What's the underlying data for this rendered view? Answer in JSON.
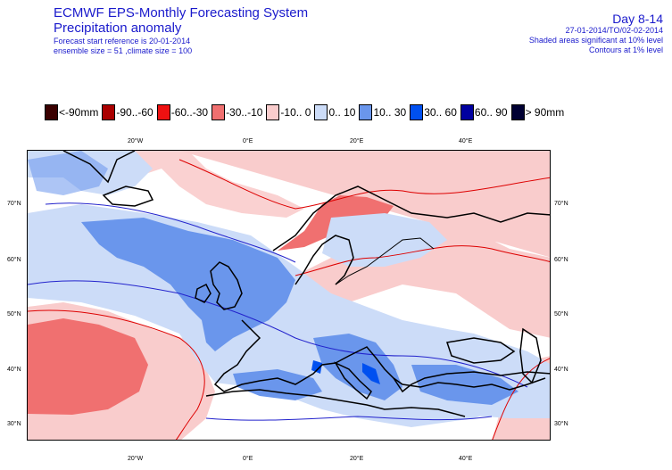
{
  "header": {
    "title_line1": "ECMWF EPS-Monthly Forecasting System",
    "title_line2": "Precipitation anomaly",
    "start_reference": "Forecast start reference is 20-01-2014",
    "ensemble_info": "ensemble size = 51 ,climate size = 100",
    "period_label": "Day 8-14",
    "date_range": "27-01-2014/TO/02-02-2014",
    "shaded_note": "Shaded areas significant at 10% level",
    "contour_note": "Contours at 1% level"
  },
  "legend": [
    {
      "label": "<-90mm",
      "color": "#3a0000"
    },
    {
      "label": "-90..-60",
      "color": "#aa0000"
    },
    {
      "label": "-60..-30",
      "color": "#ee1111"
    },
    {
      "label": "-30..-10",
      "color": "#f07070"
    },
    {
      "label": "-10.. 0",
      "color": "#f9cccc"
    },
    {
      "label": "0.. 10",
      "color": "#ccdcf8"
    },
    {
      "label": "10.. 30",
      "color": "#6a96ec"
    },
    {
      "label": "30.. 60",
      "color": "#0050f0"
    },
    {
      "label": "60.. 90",
      "color": "#0000a0"
    },
    {
      "label": "> 90mm",
      "color": "#000033"
    }
  ],
  "map": {
    "lon_labels": [
      "20°W",
      "0°E",
      "20°E",
      "40°E"
    ],
    "lat_labels": [
      "70°N",
      "60°N",
      "50°N",
      "40°N",
      "30°N"
    ],
    "colors": {
      "coast": "#000000",
      "contour_negative": "#dd0000",
      "contour_positive": "#2222cc",
      "anomaly_neg_light": "#f9cccc",
      "anomaly_neg_mid": "#f07070",
      "anomaly_pos_light": "#ccdcf8",
      "anomaly_pos_mid": "#6a96ec",
      "anomaly_pos_strong": "#0050f0"
    }
  }
}
